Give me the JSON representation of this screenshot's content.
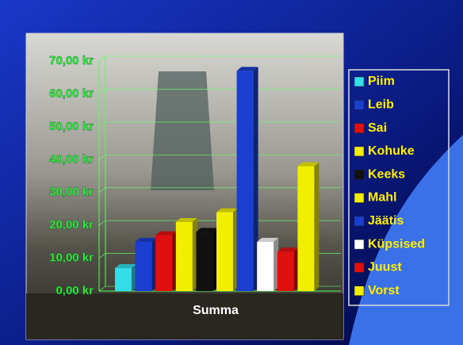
{
  "chart_data": {
    "type": "bar",
    "categories": [
      "Summa"
    ],
    "series": [
      {
        "name": "Piim",
        "color": "#33dde8",
        "values": [
          7
        ]
      },
      {
        "name": "Leib",
        "color": "#1a3fd0",
        "values": [
          15
        ]
      },
      {
        "name": "Sai",
        "color": "#e01010",
        "values": [
          17
        ]
      },
      {
        "name": "Kohuke",
        "color": "#f2ee00",
        "values": [
          21
        ]
      },
      {
        "name": "Keeks",
        "color": "#111111",
        "values": [
          18
        ]
      },
      {
        "name": "Mahl",
        "color": "#f2ee00",
        "values": [
          24
        ]
      },
      {
        "name": "Jäätis",
        "color": "#1a3fd0",
        "values": [
          67
        ]
      },
      {
        "name": "Küpsised",
        "color": "#ffffff",
        "values": [
          15
        ]
      },
      {
        "name": "Juust",
        "color": "#e01010",
        "values": [
          12
        ]
      },
      {
        "name": "Vorst",
        "color": "#f2ee00",
        "values": [
          38
        ]
      }
    ],
    "ylim": [
      0,
      70
    ],
    "yticks": [
      {
        "value": 0,
        "label": "0,00 kr"
      },
      {
        "value": 10,
        "label": "10,00 kr"
      },
      {
        "value": 20,
        "label": "20,00 kr"
      },
      {
        "value": 30,
        "label": "30,00 kr"
      },
      {
        "value": 40,
        "label": "40,00 kr"
      },
      {
        "value": 50,
        "label": "50,00 kr"
      },
      {
        "value": 60,
        "label": "60,00 kr"
      },
      {
        "value": 70,
        "label": "70,00 kr"
      }
    ],
    "grid": true
  }
}
